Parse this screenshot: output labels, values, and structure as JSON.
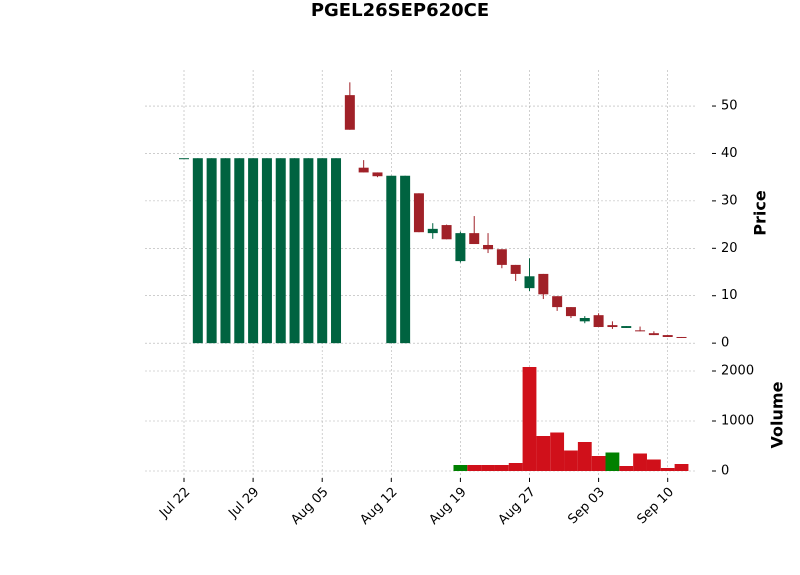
{
  "chart_data": {
    "type": "candlestick",
    "title": "PGEL26SEP620CE",
    "categories": [
      "Jul 22",
      null,
      null,
      null,
      null,
      "Jul 29",
      null,
      null,
      null,
      null,
      "Aug 05",
      null,
      null,
      null,
      null,
      "Aug 12",
      null,
      null,
      null,
      null,
      "Aug 19",
      null,
      null,
      null,
      null,
      "Aug 27",
      null,
      null,
      null,
      null,
      "Sep 03",
      null,
      null,
      null,
      null,
      "Sep 10",
      null
    ],
    "open": [
      39,
      0,
      0,
      0,
      0,
      0,
      0,
      0,
      0,
      0,
      0,
      0,
      52.3,
      37,
      36,
      0,
      0,
      31.6,
      23.2,
      24.9,
      17.3,
      23.2,
      20.7,
      19.8,
      16.5,
      11.6,
      14.6,
      9.9,
      7.6,
      4.6,
      5.9,
      3.8,
      3.2,
      2.7,
      2.1,
      1.7,
      1.3
    ],
    "high": [
      39,
      39,
      39,
      39,
      39,
      39,
      39,
      39,
      39,
      39,
      39,
      39,
      55,
      38.6,
      36,
      35.3,
      35.3,
      31.6,
      25.3,
      25,
      23.5,
      26.8,
      23.2,
      19.8,
      16.5,
      17.9,
      14.6,
      9.9,
      7.6,
      5.7,
      6.3,
      4.6,
      3.6,
      3.5,
      2.5,
      1.7,
      1.3
    ],
    "low": [
      39,
      0,
      0,
      0,
      0,
      0,
      0,
      0,
      0,
      0,
      0,
      0,
      45,
      36,
      35,
      0,
      0,
      23.4,
      22,
      21.9,
      17,
      20.9,
      19,
      15.8,
      13.1,
      11,
      9.3,
      6.8,
      5.3,
      4.2,
      3.4,
      3,
      3.2,
      2.5,
      1.7,
      1.3,
      1.1
    ],
    "close": [
      39,
      39,
      39,
      39,
      39,
      39,
      39,
      39,
      39,
      39,
      39,
      39,
      45,
      36,
      35.2,
      35.3,
      35.3,
      23.4,
      24.1,
      21.9,
      23.2,
      20.9,
      19.8,
      16.5,
      14.6,
      14.1,
      10.3,
      7.6,
      5.7,
      5.3,
      3.4,
      3.4,
      3.6,
      2.5,
      1.7,
      1.3,
      1.1
    ],
    "up_color": "#006340",
    "down_color": "#a02128",
    "ylabel": "Price",
    "ylim": [
      -2.5,
      57.6
    ],
    "yticks": [
      0,
      10,
      20,
      30,
      40,
      50
    ],
    "grid": true,
    "volume": {
      "label": "Volume",
      "values": [
        0,
        0,
        0,
        0,
        0,
        0,
        0,
        0,
        0,
        0,
        0,
        0,
        0,
        0,
        0,
        0,
        0,
        0,
        0,
        0,
        120,
        120,
        120,
        120,
        160,
        2080,
        700,
        770,
        410,
        580,
        300,
        370,
        100,
        350,
        230,
        60,
        140
      ],
      "colors": [
        "#d0101a",
        "#008000",
        "#008000",
        "#008000",
        "#008000",
        "#008000",
        "#008000",
        "#008000",
        "#008000",
        "#008000",
        "#008000",
        "#008000",
        "#d0101a",
        "#d0101a",
        "#d0101a",
        "#008000",
        "#008000",
        "#d0101a",
        "#008000",
        "#d0101a",
        "#008000",
        "#d0101a",
        "#d0101a",
        "#d0101a",
        "#d0101a",
        "#d0101a",
        "#d0101a",
        "#d0101a",
        "#d0101a",
        "#d0101a",
        "#d0101a",
        "#008000",
        "#d0101a",
        "#d0101a",
        "#d0101a",
        "#d0101a",
        "#d0101a"
      ],
      "ylim": [
        -140,
        2280
      ],
      "yticks": [
        0,
        1000,
        2000
      ]
    }
  }
}
